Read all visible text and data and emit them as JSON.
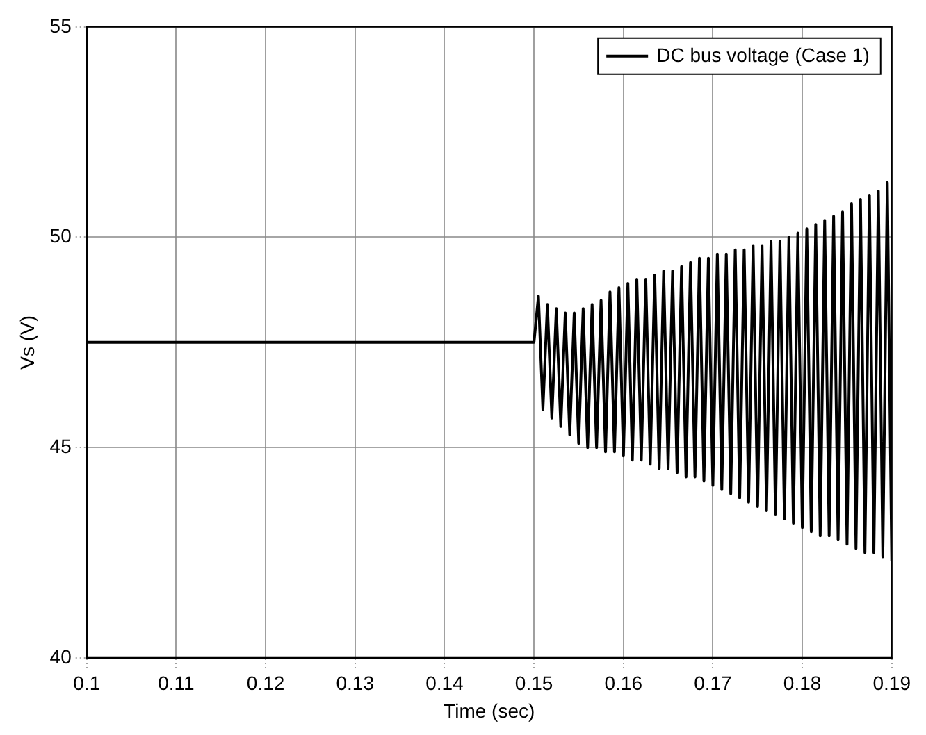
{
  "chart_data": {
    "type": "line",
    "xlabel": "Time (sec)",
    "ylabel": "Vs (V)",
    "xlim": [
      0.1,
      0.19
    ],
    "xticks": [
      0.1,
      0.11,
      0.12,
      0.13,
      0.14,
      0.15,
      0.16,
      0.17,
      0.18,
      0.19
    ],
    "ylim": [
      40,
      55
    ],
    "yticks": [
      40,
      45,
      50,
      55
    ],
    "grid": true,
    "legend": "top right",
    "line_style": "solid",
    "marker": "none",
    "series": [
      {
        "name": "DC bus voltage (Case 1)",
        "color": "#000000",
        "x": [
          0.1,
          0.15,
          0.1505,
          0.151,
          0.1515,
          0.152,
          0.1525,
          0.153,
          0.1535,
          0.154,
          0.1545,
          0.155,
          0.1555,
          0.156,
          0.1565,
          0.157,
          0.1575,
          0.158,
          0.1585,
          0.159,
          0.1595,
          0.16,
          0.1605,
          0.161,
          0.1615,
          0.162,
          0.1625,
          0.163,
          0.1635,
          0.164,
          0.1645,
          0.165,
          0.1655,
          0.166,
          0.1665,
          0.167,
          0.1675,
          0.168,
          0.1685,
          0.169,
          0.1695,
          0.17,
          0.1705,
          0.171,
          0.1715,
          0.172,
          0.1725,
          0.173,
          0.1735,
          0.174,
          0.1745,
          0.175,
          0.1755,
          0.176,
          0.1765,
          0.177,
          0.1775,
          0.178,
          0.1785,
          0.179,
          0.1795,
          0.18,
          0.1805,
          0.181,
          0.1815,
          0.182,
          0.1825,
          0.183,
          0.1835,
          0.184,
          0.1845,
          0.185,
          0.1855,
          0.186,
          0.1865,
          0.187,
          0.1875,
          0.188,
          0.1885,
          0.189,
          0.1895,
          0.19
        ],
        "values": [
          47.5,
          47.5,
          48.6,
          45.9,
          48.4,
          45.7,
          48.3,
          45.5,
          48.2,
          45.3,
          48.2,
          45.1,
          48.3,
          45.0,
          48.4,
          45.0,
          48.5,
          44.9,
          48.7,
          44.9,
          48.8,
          44.8,
          48.9,
          44.7,
          49.0,
          44.7,
          49.0,
          44.6,
          49.1,
          44.5,
          49.2,
          44.5,
          49.2,
          44.4,
          49.3,
          44.3,
          49.4,
          44.3,
          49.5,
          44.2,
          49.5,
          44.1,
          49.6,
          44.0,
          49.6,
          43.9,
          49.7,
          43.8,
          49.7,
          43.7,
          49.8,
          43.6,
          49.8,
          43.5,
          49.9,
          43.4,
          49.9,
          43.3,
          50.0,
          43.2,
          50.1,
          43.1,
          50.2,
          43.0,
          50.3,
          42.9,
          50.4,
          42.9,
          50.5,
          42.8,
          50.6,
          42.7,
          50.8,
          42.6,
          50.9,
          42.5,
          51.0,
          42.5,
          51.1,
          42.4,
          51.3,
          42.3
        ]
      }
    ]
  }
}
